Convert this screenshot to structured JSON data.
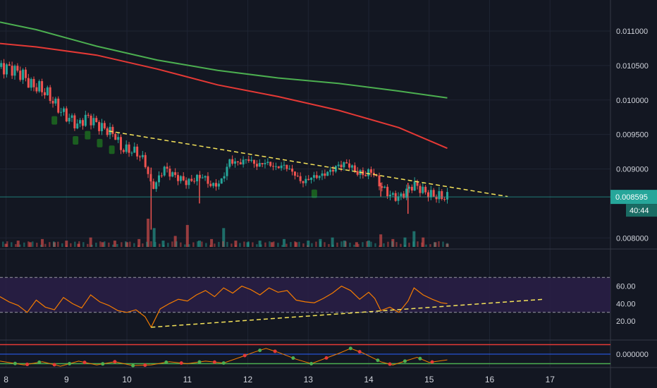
{
  "chart_data": {
    "type": "candlestick",
    "colors": {
      "background": "#131722",
      "grid": "#1f2433",
      "bull": "#26a69a",
      "bear": "#ef5350",
      "ma_slow": "#4caf50",
      "ma_fast": "#e53935",
      "trendline": "#f5e35a",
      "rsi_line": "#f57c00",
      "rsi_band": "#2a1f47",
      "marker": "#1b5e20",
      "axis_text": "#d1d4dc",
      "price_label": "#26a69a"
    },
    "x_axis": {
      "ticks": [
        "8",
        "9",
        "10",
        "11",
        "12",
        "13",
        "14",
        "15",
        "16",
        "17"
      ],
      "range": [
        7.9,
        18.0
      ]
    },
    "price_pane": {
      "y_ticks": [
        "0.011000",
        "0.010500",
        "0.010000",
        "0.009500",
        "0.009000",
        "0.008000"
      ],
      "range": [
        0.00787,
        0.01145
      ],
      "current_price": "0.008595",
      "countdown": "40:44",
      "series": {
        "close": [
          [
            7.9,
            0.01048
          ],
          [
            8.1,
            0.01045
          ],
          [
            8.3,
            0.01035
          ],
          [
            8.4,
            0.01022
          ],
          [
            8.55,
            0.01018
          ],
          [
            8.7,
            0.01008
          ],
          [
            8.8,
            0.00995
          ],
          [
            8.95,
            0.0098
          ],
          [
            9.1,
            0.0097
          ],
          [
            9.2,
            0.00962
          ],
          [
            9.3,
            0.00975
          ],
          [
            9.4,
            0.00972
          ],
          [
            9.55,
            0.00962
          ],
          [
            9.7,
            0.00955
          ],
          [
            9.8,
            0.0095
          ],
          [
            9.9,
            0.0093
          ],
          [
            10.0,
            0.00928
          ],
          [
            10.15,
            0.00925
          ],
          [
            10.3,
            0.0091
          ],
          [
            10.4,
            0.00875
          ],
          [
            10.5,
            0.0088
          ],
          [
            10.6,
            0.00902
          ],
          [
            10.75,
            0.00892
          ],
          [
            10.9,
            0.00885
          ],
          [
            11.0,
            0.0088
          ],
          [
            11.1,
            0.00885
          ],
          [
            11.25,
            0.0089
          ],
          [
            11.4,
            0.00875
          ],
          [
            11.55,
            0.0088
          ],
          [
            11.7,
            0.00912
          ],
          [
            11.85,
            0.00908
          ],
          [
            12.0,
            0.00915
          ],
          [
            12.15,
            0.00905
          ],
          [
            12.3,
            0.0091
          ],
          [
            12.45,
            0.00902
          ],
          [
            12.6,
            0.00905
          ],
          [
            12.75,
            0.00895
          ],
          [
            12.9,
            0.0088
          ],
          [
            13.05,
            0.00888
          ],
          [
            13.2,
            0.0089
          ],
          [
            13.35,
            0.00896
          ],
          [
            13.5,
            0.00905
          ],
          [
            13.65,
            0.00908
          ],
          [
            13.8,
            0.00895
          ],
          [
            13.95,
            0.00892
          ],
          [
            14.05,
            0.00898
          ],
          [
            14.2,
            0.00875
          ],
          [
            14.35,
            0.00862
          ],
          [
            14.5,
            0.00858
          ],
          [
            14.65,
            0.0087
          ],
          [
            14.75,
            0.00878
          ],
          [
            14.9,
            0.00868
          ],
          [
            15.05,
            0.00862
          ],
          [
            15.2,
            0.0086
          ],
          [
            15.3,
            0.00859
          ]
        ],
        "ma_slow": [
          [
            7.9,
            0.01113
          ],
          [
            8.5,
            0.01102
          ],
          [
            9.5,
            0.01078
          ],
          [
            10.5,
            0.01058
          ],
          [
            11.5,
            0.01043
          ],
          [
            12.5,
            0.01032
          ],
          [
            13.5,
            0.01024
          ],
          [
            14.5,
            0.01013
          ],
          [
            15.3,
            0.01003
          ]
        ],
        "ma_fast": [
          [
            7.9,
            0.01082
          ],
          [
            8.5,
            0.01077
          ],
          [
            9.5,
            0.01065
          ],
          [
            10.5,
            0.01045
          ],
          [
            11.5,
            0.01022
          ],
          [
            12.5,
            0.01005
          ],
          [
            13.5,
            0.00985
          ],
          [
            14.5,
            0.0096
          ],
          [
            15.3,
            0.0093
          ]
        ],
        "volume": [
          [
            8.0,
            2
          ],
          [
            8.2,
            4
          ],
          [
            8.4,
            3
          ],
          [
            8.6,
            5
          ],
          [
            8.8,
            3
          ],
          [
            9.0,
            4
          ],
          [
            9.2,
            2
          ],
          [
            9.4,
            6
          ],
          [
            9.6,
            3
          ],
          [
            9.8,
            4
          ],
          [
            10.0,
            3
          ],
          [
            10.2,
            5
          ],
          [
            10.35,
            18
          ],
          [
            10.45,
            12
          ],
          [
            10.6,
            4
          ],
          [
            10.8,
            7
          ],
          [
            11.0,
            14
          ],
          [
            11.2,
            4
          ],
          [
            11.4,
            5
          ],
          [
            11.6,
            12
          ],
          [
            11.8,
            4
          ],
          [
            12.0,
            3
          ],
          [
            12.2,
            4
          ],
          [
            12.4,
            3
          ],
          [
            12.6,
            5
          ],
          [
            12.8,
            3
          ],
          [
            13.0,
            4
          ],
          [
            13.2,
            5
          ],
          [
            13.4,
            6
          ],
          [
            13.6,
            4
          ],
          [
            13.8,
            3
          ],
          [
            14.0,
            4
          ],
          [
            14.2,
            8
          ],
          [
            14.4,
            5
          ],
          [
            14.6,
            6
          ],
          [
            14.75,
            10
          ],
          [
            14.9,
            6
          ],
          [
            15.1,
            3
          ],
          [
            15.3,
            2
          ]
        ],
        "markers_x": [
          8.8,
          9.15,
          9.35,
          9.55,
          9.75,
          13.1
        ]
      },
      "trendline": [
        [
          9.7,
          0.00955
        ],
        [
          16.3,
          0.0086
        ]
      ]
    },
    "rsi_pane": {
      "y_ticks": [
        "60.00",
        "40.00",
        "20.00"
      ],
      "range": [
        0,
        100
      ],
      "upper_band": 70,
      "lower_band": 30,
      "series": [
        [
          7.9,
          48
        ],
        [
          8.05,
          42
        ],
        [
          8.2,
          38
        ],
        [
          8.35,
          30
        ],
        [
          8.5,
          44
        ],
        [
          8.65,
          36
        ],
        [
          8.8,
          33
        ],
        [
          8.95,
          47
        ],
        [
          9.1,
          40
        ],
        [
          9.25,
          35
        ],
        [
          9.4,
          50
        ],
        [
          9.55,
          42
        ],
        [
          9.7,
          38
        ],
        [
          9.85,
          32
        ],
        [
          10.0,
          30
        ],
        [
          10.15,
          33
        ],
        [
          10.3,
          25
        ],
        [
          10.4,
          13
        ],
        [
          10.55,
          34
        ],
        [
          10.7,
          40
        ],
        [
          10.85,
          45
        ],
        [
          11.0,
          43
        ],
        [
          11.15,
          50
        ],
        [
          11.3,
          55
        ],
        [
          11.45,
          48
        ],
        [
          11.6,
          58
        ],
        [
          11.75,
          52
        ],
        [
          11.9,
          60
        ],
        [
          12.05,
          56
        ],
        [
          12.2,
          50
        ],
        [
          12.35,
          58
        ],
        [
          12.5,
          53
        ],
        [
          12.65,
          55
        ],
        [
          12.8,
          44
        ],
        [
          12.95,
          42
        ],
        [
          13.1,
          41
        ],
        [
          13.25,
          46
        ],
        [
          13.4,
          52
        ],
        [
          13.55,
          60
        ],
        [
          13.7,
          55
        ],
        [
          13.85,
          45
        ],
        [
          14.0,
          53
        ],
        [
          14.1,
          46
        ],
        [
          14.2,
          32
        ],
        [
          14.35,
          36
        ],
        [
          14.5,
          30
        ],
        [
          14.65,
          43
        ],
        [
          14.75,
          58
        ],
        [
          14.9,
          50
        ],
        [
          15.05,
          45
        ],
        [
          15.2,
          41
        ],
        [
          15.3,
          40
        ]
      ],
      "trendline": [
        [
          10.4,
          13
        ],
        [
          16.9,
          45
        ]
      ]
    },
    "oscillator_pane": {
      "y_ticks": [
        "0.000000"
      ],
      "range": [
        -1,
        1
      ],
      "upper_line": 0.75,
      "zero_line": 0,
      "lower_line": -0.75,
      "series": [
        [
          7.9,
          -0.55
        ],
        [
          8.3,
          -0.85
        ],
        [
          8.6,
          -0.6
        ],
        [
          8.9,
          -0.95
        ],
        [
          9.2,
          -0.55
        ],
        [
          9.5,
          -0.85
        ],
        [
          9.8,
          -0.6
        ],
        [
          10.1,
          -0.9
        ],
        [
          10.4,
          -0.85
        ],
        [
          10.7,
          -0.6
        ],
        [
          11.0,
          -0.75
        ],
        [
          11.3,
          -0.55
        ],
        [
          11.6,
          -0.7
        ],
        [
          11.9,
          -0.2
        ],
        [
          12.1,
          0.15
        ],
        [
          12.3,
          0.45
        ],
        [
          12.5,
          0.15
        ],
        [
          12.8,
          -0.4
        ],
        [
          13.05,
          -0.75
        ],
        [
          13.3,
          -0.3
        ],
        [
          13.5,
          0.05
        ],
        [
          13.7,
          0.45
        ],
        [
          13.9,
          0.1
        ],
        [
          14.2,
          -0.6
        ],
        [
          14.4,
          -0.85
        ],
        [
          14.6,
          -0.55
        ],
        [
          14.8,
          -0.25
        ],
        [
          15.0,
          -0.65
        ],
        [
          15.3,
          -0.45
        ]
      ],
      "green_dots": [
        8.15,
        8.55,
        9.05,
        9.6,
        10.1,
        10.65,
        11.2,
        11.6,
        12.2,
        12.75,
        13.05,
        13.7,
        14.15,
        14.6,
        14.85
      ],
      "red_dots": [
        8.35,
        8.8,
        9.3,
        9.8,
        10.3,
        10.9,
        11.45,
        11.95,
        12.45,
        13.3,
        13.85,
        14.35,
        15.05
      ]
    }
  }
}
